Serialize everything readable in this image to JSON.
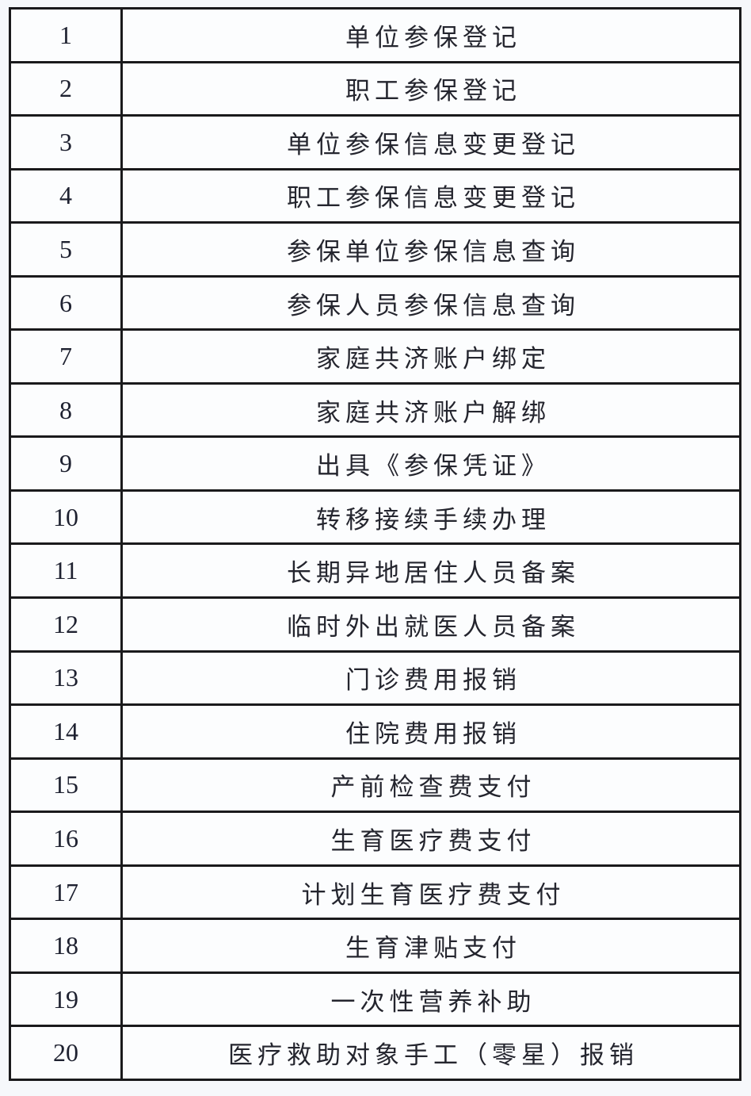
{
  "page": {
    "background": "#f6f8fb"
  },
  "table": {
    "border_color": "#1a1a1c",
    "cell_background": "#fcfdfe",
    "number_color": "#1e2130",
    "label_color": "#24252e",
    "rows": [
      {
        "num": "1",
        "label": "单位参保登记"
      },
      {
        "num": "2",
        "label": "职工参保登记"
      },
      {
        "num": "3",
        "label": "单位参保信息变更登记"
      },
      {
        "num": "4",
        "label": "职工参保信息变更登记"
      },
      {
        "num": "5",
        "label": "参保单位参保信息查询"
      },
      {
        "num": "6",
        "label": "参保人员参保信息查询"
      },
      {
        "num": "7",
        "label": "家庭共济账户绑定"
      },
      {
        "num": "8",
        "label": "家庭共济账户解绑"
      },
      {
        "num": "9",
        "label": "出具《参保凭证》"
      },
      {
        "num": "10",
        "label": "转移接续手续办理"
      },
      {
        "num": "11",
        "label": "长期异地居住人员备案"
      },
      {
        "num": "12",
        "label": "临时外出就医人员备案"
      },
      {
        "num": "13",
        "label": "门诊费用报销"
      },
      {
        "num": "14",
        "label": "住院费用报销"
      },
      {
        "num": "15",
        "label": "产前检查费支付"
      },
      {
        "num": "16",
        "label": "生育医疗费支付"
      },
      {
        "num": "17",
        "label": "计划生育医疗费支付"
      },
      {
        "num": "18",
        "label": "生育津贴支付"
      },
      {
        "num": "19",
        "label": "一次性营养补助"
      },
      {
        "num": "20",
        "label": "医疗救助对象手工（零星）报销"
      }
    ]
  }
}
